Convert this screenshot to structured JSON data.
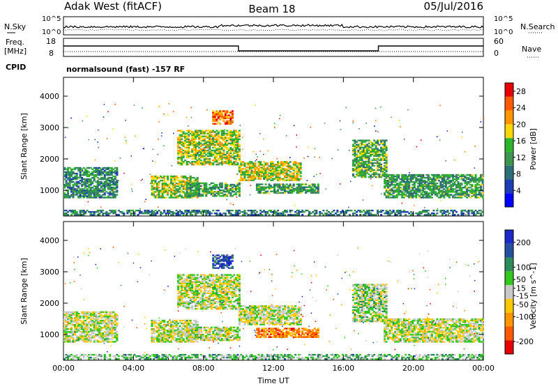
{
  "header": {
    "station": "Adak West (fitACF)",
    "beam": "Beam 18",
    "date": "05/Jul/2016"
  },
  "noise_panel": {
    "left_label": "N.Sky",
    "right_label": "N.Search",
    "left_ticks": [
      "10^5",
      "10^0"
    ],
    "right_ticks": [
      "10^5",
      "10^0"
    ]
  },
  "freq_panel": {
    "left_label_1": "Freq.",
    "left_label_2": "[MHz]",
    "right_label": "Nave",
    "left_ticks": [
      "18",
      "8"
    ],
    "right_ticks": [
      "60",
      "0"
    ],
    "cpid_label": "CPID",
    "cpid_text": "normalsound (fast) -157 RF"
  },
  "colors": {
    "power": [
      "#0000ff",
      "#1e3cb4",
      "#2d6e78",
      "#3c9650",
      "#2db42d",
      "#ffd700",
      "#ff9600",
      "#ff5a00",
      "#e60000"
    ],
    "velocity": [
      "#e60000",
      "#ff5a00",
      "#ff9600",
      "#ffc800",
      "#c8c8c8",
      "#32c81e",
      "#2d8c5a",
      "#2850a0",
      "#1e28c8"
    ]
  },
  "chart_data": [
    {
      "type": "heatmap",
      "name_parameter": "Power",
      "xlabel": "",
      "ylabel": "Slant Range [km]",
      "xlim": [
        "00:00",
        "24:00"
      ],
      "ylim": [
        180,
        4600
      ],
      "x_ticks": [
        "00:00",
        "04:00",
        "08:00",
        "12:00",
        "16:00",
        "20:00",
        "00:00"
      ],
      "y_ticks": [
        1000,
        2000,
        3000,
        4000
      ],
      "colorbar": {
        "label": "Power [dB]",
        "ticks": [
          4,
          8,
          12,
          16,
          20,
          24,
          28
        ],
        "range": [
          0,
          30
        ]
      },
      "regions": [
        {
          "t0": 0.0,
          "t1": 3.1,
          "r0": 750,
          "r1": 1700,
          "level": 0.35
        },
        {
          "t0": 5.0,
          "t1": 7.6,
          "r0": 750,
          "r1": 1450,
          "level": 0.55
        },
        {
          "t0": 7.0,
          "t1": 10.0,
          "r0": 800,
          "r1": 1250,
          "level": 0.4
        },
        {
          "t0": 6.5,
          "t1": 10.0,
          "r0": 1800,
          "r1": 2900,
          "level": 0.55
        },
        {
          "t0": 10.0,
          "t1": 13.5,
          "r0": 1300,
          "r1": 1900,
          "level": 0.6
        },
        {
          "t0": 11.0,
          "t1": 14.5,
          "r0": 900,
          "r1": 1200,
          "level": 0.4
        },
        {
          "t0": 16.5,
          "t1": 18.5,
          "r0": 1400,
          "r1": 2600,
          "level": 0.45
        },
        {
          "t0": 18.3,
          "t1": 24.0,
          "r0": 750,
          "r1": 1500,
          "level": 0.4
        },
        {
          "t0": 8.5,
          "t1": 9.6,
          "r0": 3100,
          "r1": 3550,
          "level": 0.8
        },
        {
          "t0": 0.0,
          "t1": 24.0,
          "r0": 200,
          "r1": 380,
          "level": 0.3
        }
      ]
    },
    {
      "type": "heatmap",
      "name_parameter": "Velocity",
      "xlabel": "Time UT",
      "ylabel": "Slant Range [km]",
      "xlim": [
        "00:00",
        "24:00"
      ],
      "ylim": [
        180,
        4600
      ],
      "x_ticks": [
        "00:00",
        "04:00",
        "08:00",
        "12:00",
        "16:00",
        "20:00",
        "00:00"
      ],
      "y_ticks": [
        1000,
        2000,
        3000,
        4000
      ],
      "colorbar": {
        "label": "Velocity [m s^-1]",
        "ticks": [
          -200,
          -100,
          -50,
          -15,
          15,
          50,
          100,
          200
        ],
        "range": [
          -250,
          250
        ]
      },
      "regions": [
        {
          "t0": 0.0,
          "t1": 3.1,
          "r0": 750,
          "r1": 1700,
          "level": 0.5
        },
        {
          "t0": 5.0,
          "t1": 7.6,
          "r0": 750,
          "r1": 1450,
          "level": 0.5
        },
        {
          "t0": 7.0,
          "t1": 10.0,
          "r0": 800,
          "r1": 1250,
          "level": 0.5
        },
        {
          "t0": 6.5,
          "t1": 10.0,
          "r0": 1800,
          "r1": 2900,
          "level": 0.5
        },
        {
          "t0": 10.0,
          "t1": 13.5,
          "r0": 1300,
          "r1": 1900,
          "level": 0.5
        },
        {
          "t0": 11.0,
          "t1": 14.5,
          "r0": 900,
          "r1": 1200,
          "level": 0.25
        },
        {
          "t0": 16.5,
          "t1": 18.5,
          "r0": 1400,
          "r1": 2600,
          "level": 0.55
        },
        {
          "t0": 18.3,
          "t1": 24.0,
          "r0": 750,
          "r1": 1500,
          "level": 0.5
        },
        {
          "t0": 8.5,
          "t1": 9.6,
          "r0": 3100,
          "r1": 3550,
          "level": 0.85
        },
        {
          "t0": 0.0,
          "t1": 24.0,
          "r0": 200,
          "r1": 380,
          "level": 0.62
        }
      ]
    }
  ]
}
